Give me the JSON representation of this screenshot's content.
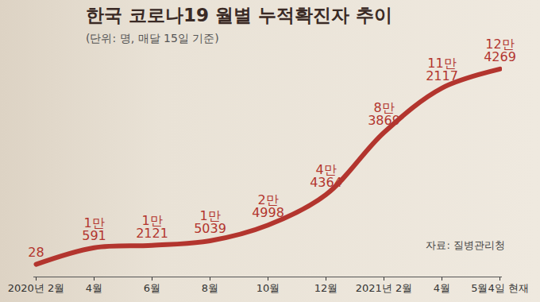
{
  "chart_data": {
    "type": "line",
    "title": "한국 코로나19 월별 누적확진자 추이",
    "subtitle": "(단위: 명, 매달 15일 기준)",
    "source": "자료: 질병관리청",
    "categories": [
      "2020년 2월",
      "4월",
      "6월",
      "8월",
      "10월",
      "12월",
      "2021년 2월",
      "4월",
      "5월4일 현재"
    ],
    "values": [
      28,
      10591,
      12121,
      15039,
      24998,
      44364,
      83869,
      112117,
      124269
    ],
    "value_labels": [
      "28",
      "1만\n591",
      "1만\n2121",
      "1만\n5039",
      "2만\n4998",
      "4만\n4364",
      "8만\n3869",
      "11만\n2117",
      "12만\n4269"
    ],
    "color": "#b3352e",
    "ylim": [
      -8000,
      130000
    ],
    "data_labels": true,
    "tick_labels": "x",
    "line_style": "solid"
  }
}
